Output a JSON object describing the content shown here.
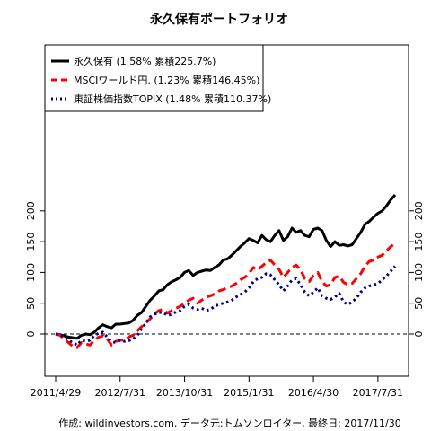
{
  "chart_data": {
    "type": "line",
    "title": "永久保有ポートフォリオ",
    "caption": "作成: wildinvestors.com, データ元:トムソンロイター, 最終日: 2017/11/30",
    "xlabel": "",
    "ylabel": "",
    "x_tick_labels": [
      "2011/4/29",
      "2012/7/31",
      "2013/10/31",
      "2015/1/31",
      "2016/4/30",
      "2017/7/31"
    ],
    "x_range_months": [
      "2011/4",
      "2017/11"
    ],
    "ylim": [
      -35,
      235
    ],
    "y_ticks": [
      0,
      50,
      100,
      150,
      200
    ],
    "reference_line": 0,
    "legend_position": "top-left",
    "x": [
      "2011/4",
      "2011/5",
      "2011/6",
      "2011/7",
      "2011/8",
      "2011/9",
      "2011/10",
      "2011/11",
      "2011/12",
      "2012/1",
      "2012/2",
      "2012/3",
      "2012/4",
      "2012/5",
      "2012/6",
      "2012/7",
      "2012/8",
      "2012/9",
      "2012/10",
      "2012/11",
      "2012/12",
      "2013/1",
      "2013/2",
      "2013/3",
      "2013/4",
      "2013/5",
      "2013/6",
      "2013/7",
      "2013/8",
      "2013/9",
      "2013/10",
      "2013/11",
      "2013/12",
      "2014/1",
      "2014/2",
      "2014/3",
      "2014/4",
      "2014/5",
      "2014/6",
      "2014/7",
      "2014/8",
      "2014/9",
      "2014/10",
      "2014/11",
      "2014/12",
      "2015/1",
      "2015/2",
      "2015/3",
      "2015/4",
      "2015/5",
      "2015/6",
      "2015/7",
      "2015/8",
      "2015/9",
      "2015/10",
      "2015/11",
      "2015/12",
      "2016/1",
      "2016/2",
      "2016/3",
      "2016/4",
      "2016/5",
      "2016/6",
      "2016/7",
      "2016/8",
      "2016/9",
      "2016/10",
      "2016/11",
      "2016/12",
      "2017/1",
      "2017/2",
      "2017/3",
      "2017/4",
      "2017/5",
      "2017/6",
      "2017/7",
      "2017/8",
      "2017/9",
      "2017/10",
      "2017/11"
    ],
    "series": [
      {
        "name": "永久保有 (1.58% 累積225.7%)",
        "color": "#000000",
        "style": "solid",
        "values": [
          0,
          -1,
          -3,
          -5,
          -6,
          -7,
          -2,
          0,
          -1,
          3,
          10,
          15,
          12,
          10,
          16,
          16,
          17,
          18,
          22,
          30,
          35,
          45,
          55,
          62,
          70,
          72,
          80,
          85,
          88,
          92,
          100,
          103,
          95,
          100,
          102,
          104,
          103,
          108,
          112,
          120,
          122,
          128,
          135,
          142,
          148,
          155,
          152,
          148,
          160,
          153,
          150,
          160,
          168,
          152,
          158,
          172,
          165,
          168,
          160,
          158,
          170,
          172,
          168,
          152,
          142,
          150,
          144,
          145,
          143,
          145,
          155,
          165,
          178,
          183,
          190,
          196,
          200,
          208,
          218,
          226
        ]
      },
      {
        "name": "MSCIワールド円. (1.23% 累積146.45%)",
        "color": "#ff0000",
        "style": "dashed",
        "values": [
          0,
          -2,
          -8,
          -14,
          -20,
          -22,
          -14,
          -16,
          -18,
          -10,
          -5,
          -3,
          -8,
          -18,
          -12,
          -10,
          -10,
          -5,
          -2,
          5,
          12,
          18,
          25,
          32,
          38,
          40,
          34,
          38,
          42,
          45,
          50,
          55,
          58,
          50,
          55,
          60,
          62,
          65,
          70,
          72,
          75,
          78,
          82,
          88,
          92,
          98,
          108,
          104,
          110,
          116,
          120,
          112,
          105,
          92,
          100,
          108,
          112,
          104,
          90,
          85,
          95,
          100,
          85,
          78,
          80,
          92,
          94,
          84,
          80,
          82,
          90,
          98,
          110,
          118,
          120,
          125,
          128,
          135,
          142,
          147
        ]
      },
      {
        "name": "東証株価指数TOPIX (1.48% 累積110.37%)",
        "color": "#00008b",
        "style": "dotted",
        "values": [
          0,
          -1,
          -5,
          -10,
          -14,
          -18,
          -10,
          -12,
          -10,
          -2,
          1,
          3,
          -5,
          -12,
          -14,
          -10,
          -12,
          -11,
          -8,
          -2,
          8,
          18,
          28,
          32,
          35,
          35,
          30,
          32,
          36,
          38,
          45,
          48,
          42,
          40,
          42,
          38,
          40,
          45,
          48,
          50,
          52,
          55,
          60,
          64,
          68,
          75,
          85,
          90,
          92,
          98,
          96,
          88,
          80,
          70,
          78,
          88,
          90,
          80,
          68,
          62,
          68,
          75,
          62,
          58,
          56,
          60,
          66,
          52,
          48,
          52,
          58,
          68,
          75,
          78,
          80,
          82,
          88,
          94,
          102,
          110
        ]
      }
    ]
  }
}
